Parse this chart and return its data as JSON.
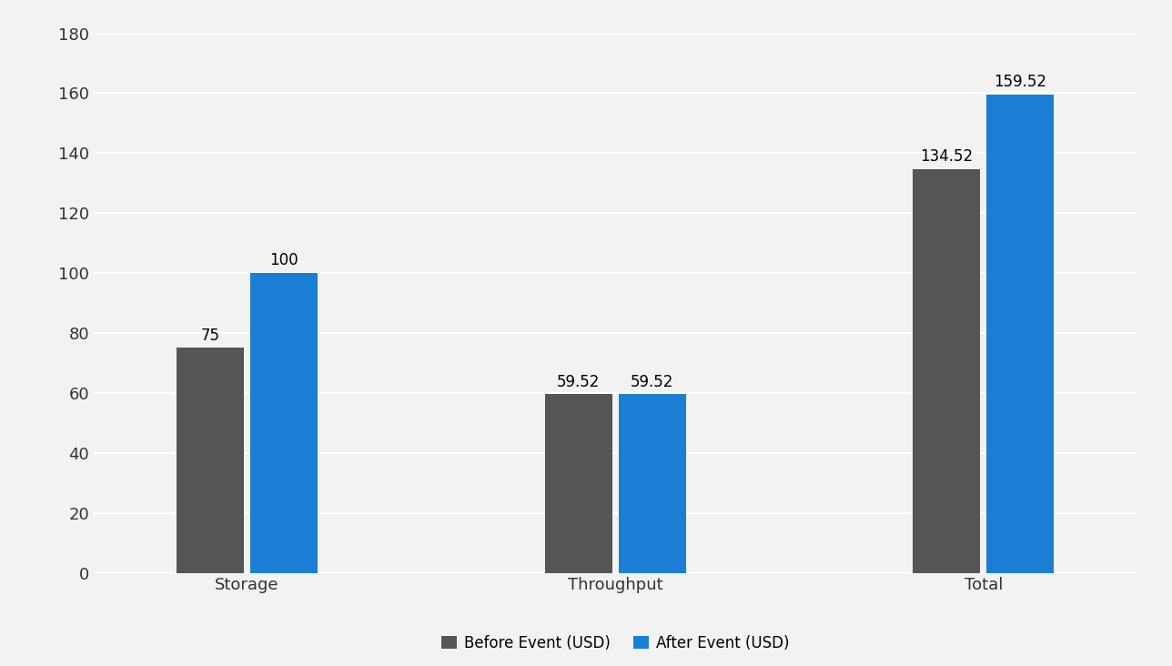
{
  "categories": [
    "Storage",
    "Throughput",
    "Total"
  ],
  "before_values": [
    75,
    59.52,
    134.52
  ],
  "after_values": [
    100,
    59.52,
    159.52
  ],
  "before_color": "#555555",
  "after_color": "#1a7fd4",
  "background_color": "#f2f2f2",
  "plot_bg_color": "#f2f2f2",
  "ylim": [
    0,
    180
  ],
  "yticks": [
    0,
    20,
    40,
    60,
    80,
    100,
    120,
    140,
    160,
    180
  ],
  "bar_width": 0.22,
  "legend_labels": [
    "Before Event (USD)",
    "After Event (USD)"
  ],
  "tick_fontsize": 13,
  "legend_fontsize": 12,
  "value_fontsize": 12
}
